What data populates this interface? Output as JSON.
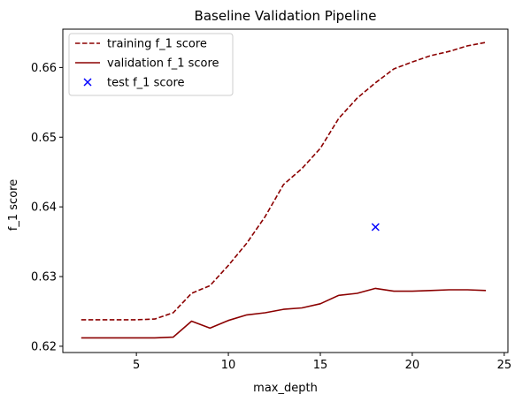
{
  "chart_data": {
    "type": "line",
    "title": "Baseline Validation Pipeline",
    "xlabel": "max_depth",
    "ylabel": "f_1 score",
    "xlim": [
      1,
      25.2
    ],
    "ylim": [
      0.6191,
      0.6655
    ],
    "xticks": [
      5,
      10,
      15,
      20,
      25
    ],
    "yticks": [
      0.62,
      0.63,
      0.64,
      0.65,
      0.66
    ],
    "ytick_labels": [
      "0.62",
      "0.63",
      "0.64",
      "0.65",
      "0.66"
    ],
    "grid": false,
    "legend_position": "top-left",
    "series": [
      {
        "name": "training f_1 score",
        "style": "dashed",
        "color": "#8b0000",
        "x": [
          2,
          3,
          4,
          5,
          6,
          7,
          8,
          9,
          10,
          11,
          12,
          13,
          14,
          15,
          16,
          17,
          18,
          19,
          20,
          21,
          22,
          23,
          24
        ],
        "y": [
          0.6238,
          0.6238,
          0.6238,
          0.6238,
          0.6239,
          0.6248,
          0.6276,
          0.6287,
          0.6316,
          0.6348,
          0.6386,
          0.6432,
          0.6455,
          0.6484,
          0.6527,
          0.6556,
          0.6578,
          0.6598,
          0.6608,
          0.6617,
          0.6623,
          0.6631,
          0.6636
        ]
      },
      {
        "name": "validation f_1 score",
        "style": "solid",
        "color": "#8b0000",
        "x": [
          2,
          3,
          4,
          5,
          6,
          7,
          8,
          9,
          10,
          11,
          12,
          13,
          14,
          15,
          16,
          17,
          18,
          19,
          20,
          21,
          22,
          23,
          24
        ],
        "y": [
          0.6212,
          0.6212,
          0.6212,
          0.6212,
          0.6212,
          0.6213,
          0.6236,
          0.6226,
          0.6237,
          0.6245,
          0.6248,
          0.6253,
          0.6255,
          0.6261,
          0.6273,
          0.6276,
          0.6283,
          0.6279,
          0.6279,
          0.628,
          0.6281,
          0.6281,
          0.628
        ]
      },
      {
        "name": "test f_1 score",
        "style": "marker-x",
        "color": "#0000ff",
        "x": [
          18
        ],
        "y": [
          0.6371
        ]
      }
    ]
  }
}
